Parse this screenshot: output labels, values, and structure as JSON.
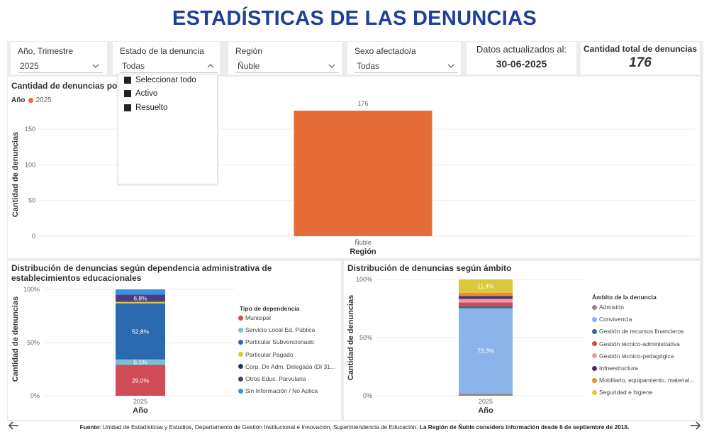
{
  "page_title": "ESTADÍSTICAS DE LAS DENUNCIAS",
  "slicers": {
    "year_quarter": {
      "label": "Año, Trimestre",
      "value": "2025"
    },
    "status": {
      "label": "Estado de la denuncia",
      "value": "Todas"
    },
    "region": {
      "label": "Región",
      "value": "Ñuble"
    },
    "sex": {
      "label": "Sexo afectado/a",
      "value": "Todas"
    }
  },
  "status_menu": {
    "items": [
      "Seleccionar todo",
      "Activo",
      "Resuelto"
    ]
  },
  "updated": {
    "label": "Datos actualizados al:",
    "date": "30-06-2025"
  },
  "total": {
    "label": "Cantidad total de denuncias",
    "value": "176"
  },
  "region_chart": {
    "title": "Cantidad de denuncias por re",
    "legend_label": "Año",
    "legend_item": "2025",
    "color": "#e66c37"
  },
  "dependency_chart": {
    "title": "Distribución de denuncias según dependencia administrativa de establecimientos educacionales",
    "legend_title": "Tipo de dependencia"
  },
  "scope_chart": {
    "title": "Distribución de denuncias según ámbito",
    "legend_title": "Ámbito de la denuncia"
  },
  "footer": {
    "source_label": "Fuente:",
    "source_text": " Unidad de Estadísticas y Estudios, Departamento de Gestión Institucional e Innovación, Superintendencia de Educación. ",
    "note": "La Región de Ñuble considera información desde 6  de septiembre de 2018."
  },
  "icons": {
    "prev": "arrow-left-icon",
    "next": "arrow-right-icon"
  },
  "chart_data": [
    {
      "type": "bar",
      "categories": [
        "Ñuble"
      ],
      "series": [
        {
          "name": "2025",
          "values": [
            176
          ]
        }
      ],
      "title": "Cantidad de denuncias por re",
      "xlabel": "Región",
      "ylabel": "Cantidad de denuncias",
      "ylim": [
        0,
        176
      ],
      "yticks": [
        "0",
        "50",
        "100",
        "150"
      ],
      "data_labels": [
        "176"
      ],
      "grid": true,
      "legend": "top-left"
    },
    {
      "type": "bar",
      "stacked": true,
      "categories": [
        "2025"
      ],
      "series": [
        {
          "name": "Municipal",
          "values": [
            29.0
          ],
          "label": "29,0%",
          "color": "#cf4b55"
        },
        {
          "name": "Servicio Local Ed. Pública",
          "values": [
            5.1
          ],
          "label": "5,1%",
          "color": "#7fbcd8"
        },
        {
          "name": "Particular Subvencionado",
          "values": [
            52.8
          ],
          "label": "52,8%",
          "color": "#2c6ab0"
        },
        {
          "name": "Particular Pagado",
          "values": [
            1.4
          ],
          "label": "",
          "color": "#dcc83c"
        },
        {
          "name": "Corp. De Adm. Delegada (DI 31...",
          "values": [
            0.0
          ],
          "label": "",
          "color": "#1c3d64"
        },
        {
          "name": "Otros Educ. Parvularia",
          "values": [
            6.8
          ],
          "label": "6,8%",
          "color": "#4b3c84"
        },
        {
          "name": "Sin Información / No Aplica",
          "values": [
            4.9
          ],
          "label": "",
          "color": "#3a91e0"
        }
      ],
      "title": "Distribución de denuncias según dependencia administrativa de establecimientos educacionales",
      "xlabel": "Año",
      "ylabel": "Cantidad de denuncias",
      "ylim": [
        0,
        100
      ],
      "yticks": [
        "0%",
        "50%",
        "100%"
      ],
      "legend": "right"
    },
    {
      "type": "bar",
      "stacked": true,
      "categories": [
        "2025"
      ],
      "series": [
        {
          "name": "Admisión",
          "values": [
            2.0
          ],
          "label": "",
          "color": "#8f8b8b"
        },
        {
          "name": "Convivencia",
          "values": [
            73.3
          ],
          "label": "73,3%",
          "color": "#8ab4ea"
        },
        {
          "name": "Gestión de recursos financieros",
          "values": [
            1.5
          ],
          "label": "",
          "color": "#336a99"
        },
        {
          "name": "Gestión técnico-administrativa",
          "values": [
            3.5
          ],
          "label": "",
          "color": "#d04a54"
        },
        {
          "name": "Gestión técnico-pedagógica",
          "values": [
            3.0
          ],
          "label": "",
          "color": "#ef99aa"
        },
        {
          "name": "Infraestructura",
          "values": [
            2.5
          ],
          "label": "",
          "color": "#4a2f6b"
        },
        {
          "name": "Mobiliario, equipamiento, material...",
          "values": [
            2.8
          ],
          "label": "",
          "color": "#ed8e24"
        },
        {
          "name": "Seguridad e higiene",
          "values": [
            11.4
          ],
          "label": "11,4%",
          "color": "#dcc83c"
        }
      ],
      "title": "Distribución de denuncias según ámbito",
      "xlabel": "Año",
      "ylabel": "Cantidad de denuncias",
      "ylim": [
        0,
        100
      ],
      "yticks": [
        "0%",
        "50%",
        "100%"
      ],
      "legend": "right"
    }
  ]
}
